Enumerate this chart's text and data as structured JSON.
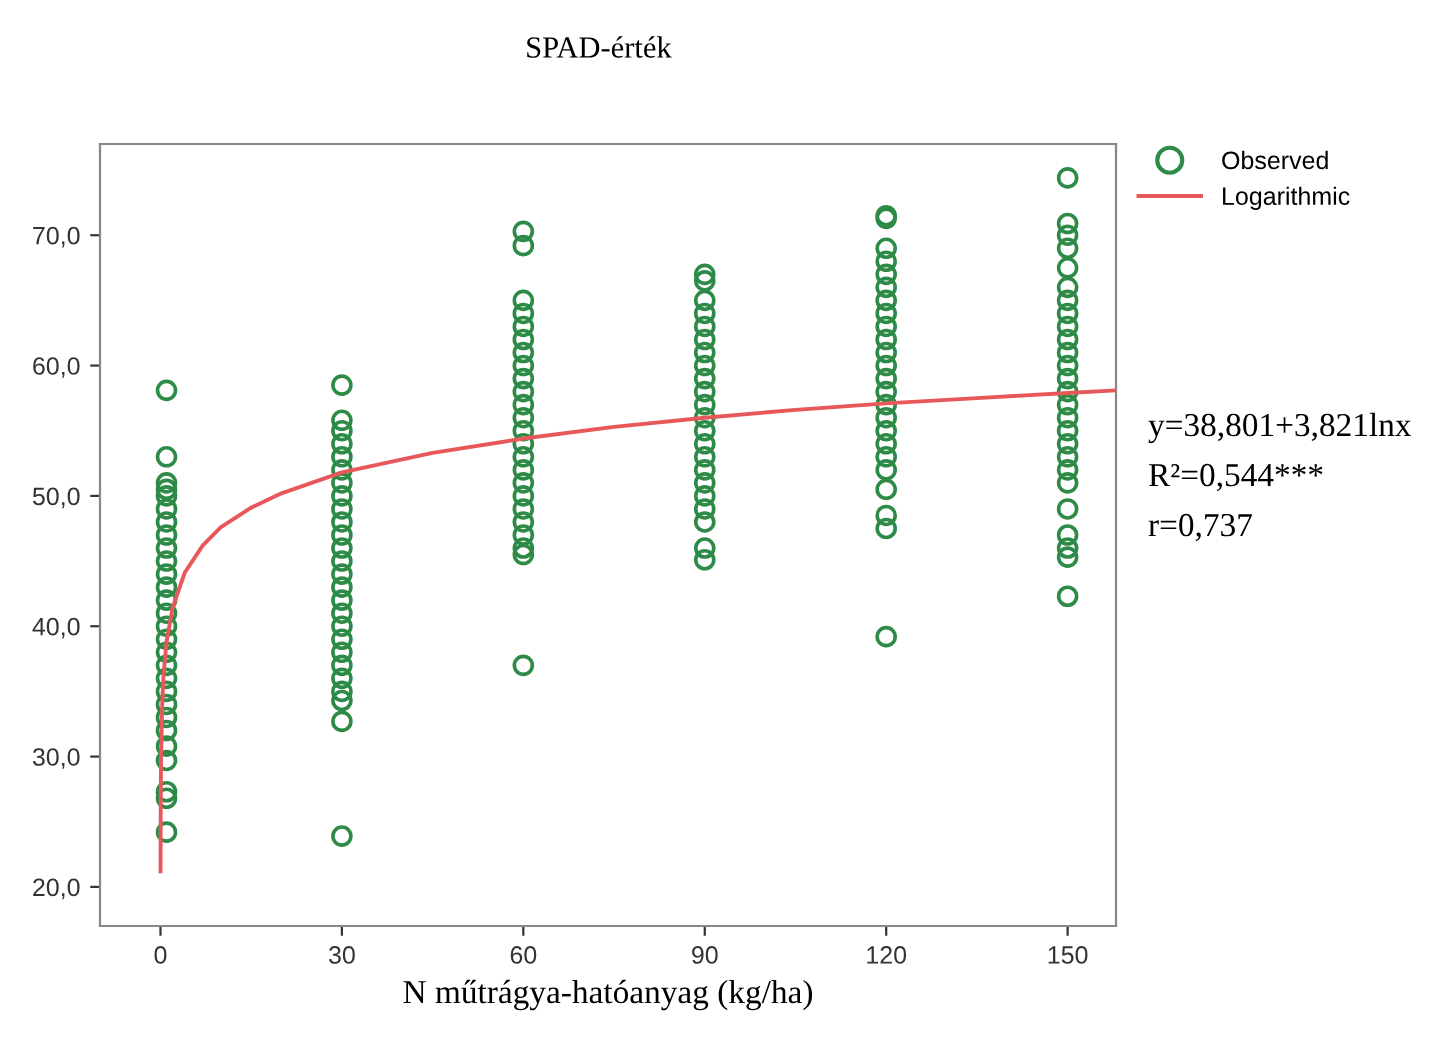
{
  "chart_data": {
    "type": "scatter",
    "title": "SPAD-érték",
    "xlabel": "N műtrágya-hatóanyag (kg/ha)",
    "xlim": [
      -10,
      158
    ],
    "xticks": [
      0,
      30,
      60,
      90,
      120,
      150
    ],
    "ylim": [
      17,
      77
    ],
    "yticks": [
      {
        "value": 20,
        "label": "20,0"
      },
      {
        "value": 30,
        "label": "30,0"
      },
      {
        "value": 40,
        "label": "40,0"
      },
      {
        "value": 50,
        "label": "50,0"
      },
      {
        "value": 60,
        "label": "60,0"
      },
      {
        "value": 70,
        "label": "70,0"
      }
    ],
    "grid": false,
    "legend": "top right",
    "series": [
      {
        "name": "Observed",
        "marker": "circle",
        "color": "#2e8b47",
        "x": [
          1,
          1,
          1,
          1,
          1,
          1,
          1,
          1,
          1,
          1,
          1,
          1,
          1,
          1,
          1,
          1,
          1,
          1,
          1,
          1,
          1,
          1,
          1,
          1,
          1,
          1,
          1,
          1,
          30,
          30,
          30,
          30,
          30,
          30,
          30,
          30,
          30,
          30,
          30,
          30,
          30,
          30,
          30,
          30,
          30,
          30,
          30,
          30,
          30,
          30,
          30,
          30,
          30,
          30,
          60,
          60,
          60,
          60,
          60,
          60,
          60,
          60,
          60,
          60,
          60,
          60,
          60,
          60,
          60,
          60,
          60,
          60,
          60,
          60,
          60,
          60,
          60,
          60,
          90,
          90,
          90,
          90,
          90,
          90,
          90,
          90,
          90,
          90,
          90,
          90,
          90,
          90,
          90,
          90,
          90,
          90,
          90,
          90,
          90,
          90,
          120,
          120,
          120,
          120,
          120,
          120,
          120,
          120,
          120,
          120,
          120,
          120,
          120,
          120,
          120,
          120,
          120,
          120,
          120,
          120,
          120,
          120,
          120,
          120,
          150,
          150,
          150,
          150,
          150,
          150,
          150,
          150,
          150,
          150,
          150,
          150,
          150,
          150,
          150,
          150,
          150,
          150,
          150,
          150,
          150,
          150,
          150,
          150,
          150,
          150
        ],
        "values": [
          58.1,
          53,
          51,
          50.5,
          50,
          49,
          48,
          47,
          46,
          45,
          44,
          43,
          42,
          41,
          40,
          39,
          38,
          37,
          36,
          35,
          34,
          33,
          32,
          30.8,
          29.7,
          27.3,
          26.8,
          24.2,
          58.5,
          55.8,
          55,
          54,
          53,
          52,
          51,
          50,
          49,
          48,
          47,
          46,
          45,
          44,
          43,
          42,
          41,
          40,
          39,
          38,
          37,
          36,
          35,
          34.3,
          32.7,
          23.9,
          70.3,
          69.2,
          65,
          64,
          63,
          62,
          61,
          60,
          59,
          58,
          57,
          56,
          55,
          54,
          53,
          52,
          51,
          50,
          49,
          48,
          47,
          46,
          45.5,
          37,
          67,
          66.5,
          65,
          64,
          63,
          62,
          61,
          60,
          59,
          58,
          57,
          56,
          55,
          54,
          53,
          52,
          51,
          50,
          49,
          48,
          46,
          45.1,
          71.5,
          71.3,
          69,
          68,
          67,
          66,
          65,
          64,
          63,
          62,
          61,
          60,
          59,
          58,
          57,
          56,
          55,
          54,
          53,
          52,
          50.5,
          48.5,
          47.5,
          39.2,
          74.4,
          70.9,
          70,
          69,
          67.5,
          66,
          65,
          64,
          63,
          62,
          61,
          60,
          59,
          58,
          57,
          56,
          55,
          54,
          53,
          52,
          51,
          49,
          47,
          46,
          45.3,
          42.3
        ]
      },
      {
        "name": "Logarithmic",
        "type": "line",
        "color": "#e8585a",
        "x": [
          0.01,
          0.05,
          0.1,
          0.3,
          0.5,
          1,
          2,
          4,
          7,
          10,
          15,
          20,
          30,
          45,
          60,
          75,
          90,
          105,
          120,
          135,
          150,
          158
        ],
        "values": [
          21.2,
          27.4,
          30,
          34.2,
          36.2,
          38.8,
          41.4,
          44.1,
          46.2,
          47.6,
          49.1,
          50.2,
          51.8,
          53.3,
          54.4,
          55.3,
          56,
          56.6,
          57.1,
          57.5,
          57.9,
          58.1
        ]
      }
    ],
    "annotations": [
      "y=38,801+3,821lnx",
      "R²=0,544***",
      "r=0,737"
    ]
  }
}
